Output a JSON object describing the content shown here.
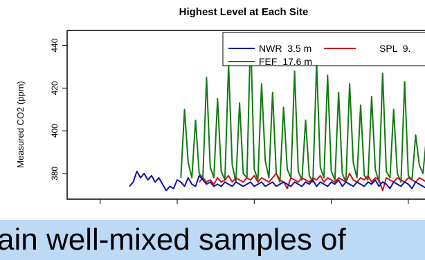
{
  "chart_data": {
    "type": "line",
    "title": "Highest Level at Each Site",
    "ylabel": "Measured CO2 (ppm)",
    "xlabel": "",
    "ylim": [
      368,
      447
    ],
    "xlim": [
      0,
      100
    ],
    "yticks": [
      380,
      400,
      420,
      440
    ],
    "xticks": [
      9,
      30,
      51,
      72,
      93
    ],
    "grid": false,
    "legend_placement": "top-right",
    "series": [
      {
        "name": "NWR  3.5 m",
        "color": "#1010a0",
        "x": [
          1,
          2,
          3,
          4,
          5,
          6,
          7,
          8,
          9,
          10,
          11,
          12,
          13,
          14,
          15,
          16,
          17,
          18,
          19,
          20,
          21,
          22,
          23,
          24,
          25,
          26,
          27,
          28,
          29,
          30,
          31,
          32,
          33,
          34,
          35,
          36,
          37,
          38,
          39,
          40,
          41,
          42,
          43,
          44,
          45,
          46,
          47,
          48,
          49,
          50,
          51,
          52,
          53,
          54,
          55,
          56,
          57,
          58,
          59,
          60,
          61,
          62,
          63,
          64,
          65,
          66,
          67,
          68,
          69,
          70,
          71,
          72,
          73,
          74,
          75,
          76,
          77,
          78,
          79,
          80,
          81,
          82,
          83,
          84,
          85,
          86,
          87,
          88,
          89,
          90,
          91,
          92,
          93,
          94,
          95,
          96,
          97,
          98,
          99,
          100
        ],
        "y": [
          null,
          null,
          null,
          null,
          null,
          null,
          null,
          null,
          null,
          null,
          null,
          null,
          null,
          null,
          null,
          null,
          374,
          376,
          381,
          378,
          380,
          377,
          379,
          376,
          378,
          375,
          372,
          374,
          373,
          377,
          376,
          374,
          378,
          375,
          374,
          379,
          377,
          375,
          376,
          374,
          375,
          374,
          376,
          375,
          374,
          376,
          375,
          374,
          375,
          376,
          374,
          375,
          376,
          374,
          375,
          376,
          374,
          375,
          376,
          375,
          374,
          376,
          375,
          374,
          376,
          375,
          377,
          374,
          376,
          375,
          374,
          376,
          375,
          377,
          374,
          376,
          375,
          374,
          376,
          375,
          374,
          376,
          375,
          377,
          374,
          376,
          375,
          373,
          376,
          375,
          374,
          376,
          375,
          373,
          376,
          375,
          374,
          373,
          374,
          374
        ]
      },
      {
        "name": "SPL  9.",
        "color": "#cc1020",
        "x": [
          1,
          2,
          3,
          4,
          5,
          6,
          7,
          8,
          9,
          10,
          11,
          12,
          13,
          14,
          15,
          16,
          17,
          18,
          19,
          20,
          21,
          22,
          23,
          24,
          25,
          26,
          27,
          28,
          29,
          30,
          31,
          32,
          33,
          34,
          35,
          36,
          37,
          38,
          39,
          40,
          41,
          42,
          43,
          44,
          45,
          46,
          47,
          48,
          49,
          50,
          51,
          52,
          53,
          54,
          55,
          56,
          57,
          58,
          59,
          60,
          61,
          62,
          63,
          64,
          65,
          66,
          67,
          68,
          69,
          70,
          71,
          72,
          73,
          74,
          75,
          76,
          77,
          78,
          79,
          80,
          81,
          82,
          83,
          84,
          85,
          86,
          87,
          88,
          89,
          90,
          91,
          92,
          93,
          94,
          95,
          96,
          97,
          98,
          99,
          100
        ],
        "y": [
          null,
          null,
          null,
          null,
          null,
          null,
          null,
          null,
          null,
          null,
          null,
          null,
          null,
          null,
          null,
          null,
          null,
          null,
          null,
          null,
          null,
          null,
          null,
          null,
          null,
          null,
          null,
          null,
          null,
          null,
          null,
          null,
          null,
          null,
          null,
          376,
          378,
          376,
          377,
          375,
          378,
          376,
          377,
          379,
          376,
          378,
          377,
          376,
          378,
          377,
          379,
          376,
          378,
          377,
          376,
          378,
          380,
          377,
          376,
          373,
          378,
          377,
          376,
          378,
          377,
          376,
          378,
          377,
          379,
          376,
          378,
          377,
          376,
          378,
          377,
          376,
          380,
          377,
          376,
          378,
          377,
          379,
          376,
          378,
          377,
          372,
          378,
          377,
          376,
          378,
          377,
          376,
          378,
          377,
          376,
          378,
          377,
          376,
          378,
          377
        ]
      },
      {
        "name": "FEF  17.6 m",
        "color": "#117a11",
        "x": [
          1,
          2,
          3,
          4,
          5,
          6,
          7,
          8,
          9,
          10,
          11,
          12,
          13,
          14,
          15,
          16,
          17,
          18,
          19,
          20,
          21,
          22,
          23,
          24,
          25,
          26,
          27,
          28,
          29,
          30,
          31,
          32,
          33,
          34,
          35,
          36,
          37,
          38,
          39,
          40,
          41,
          42,
          43,
          44,
          45,
          46,
          47,
          48,
          49,
          50,
          51,
          52,
          53,
          54,
          55,
          56,
          57,
          58,
          59,
          60,
          61,
          62,
          63,
          64,
          65,
          66,
          67,
          68,
          69,
          70,
          71,
          72,
          73,
          74,
          75,
          76,
          77,
          78,
          79,
          80,
          81,
          82,
          83,
          84,
          85,
          86,
          87,
          88,
          89,
          90,
          91,
          92,
          93,
          94,
          95,
          96,
          97,
          98,
          99,
          100
        ],
        "y": [
          null,
          null,
          null,
          null,
          null,
          null,
          null,
          null,
          null,
          null,
          null,
          null,
          null,
          null,
          null,
          null,
          null,
          null,
          null,
          null,
          null,
          null,
          null,
          null,
          null,
          null,
          null,
          null,
          null,
          null,
          378,
          410,
          385,
          378,
          405,
          380,
          378,
          425,
          383,
          378,
          415,
          381,
          377,
          431,
          384,
          376,
          413,
          380,
          378,
          446,
          382,
          377,
          422,
          386,
          378,
          418,
          380,
          376,
          411,
          382,
          378,
          428,
          381,
          377,
          405,
          379,
          376,
          432,
          383,
          378,
          426,
          381,
          377,
          418,
          380,
          376,
          422,
          385,
          378,
          412,
          379,
          377,
          416,
          382,
          376,
          427,
          381,
          378,
          410,
          380,
          376,
          423,
          379,
          377,
          398,
          384,
          380,
          398,
          392,
          396
        ]
      }
    ]
  },
  "caption": {
    "text": "ain well-mixed samples of"
  }
}
